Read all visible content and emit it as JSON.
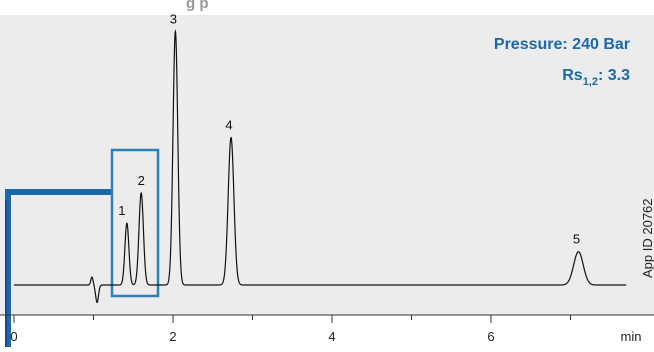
{
  "header_fragment": "g   p",
  "annotations": {
    "pressure_text": "Pressure: 240 Bar",
    "rs_prefix": "Rs",
    "rs_subscript": "1,2",
    "rs_suffix": ": 3.3",
    "app_id": "App ID 20762"
  },
  "colors": {
    "plot_background": "#ececec",
    "annotation_blue": "#1a6aa8",
    "box_blue": "#2d7fb5",
    "trace": "#111111",
    "axis": "#333333"
  },
  "chart_data": {
    "type": "line",
    "title": "",
    "xlabel": "",
    "ylabel": "",
    "x_unit": "min",
    "xlim": [
      0,
      7.7
    ],
    "xticks": [
      0,
      2,
      4,
      6
    ],
    "x_unit_label": "min",
    "grid": false,
    "legend": "none",
    "series": [
      {
        "baseline": 0,
        "disturbance": {
          "t": 1.0,
          "down": -1.1,
          "up": 0.5
        },
        "peaks": [
          {
            "label": "1",
            "t": 1.42,
            "height": 3.9,
            "width": 0.025
          },
          {
            "label": "2",
            "t": 1.6,
            "height": 5.8,
            "width": 0.028
          },
          {
            "label": "3",
            "t": 2.03,
            "height": 16.0,
            "width": 0.03
          },
          {
            "label": "4",
            "t": 2.73,
            "height": 9.3,
            "width": 0.036
          },
          {
            "label": "5",
            "t": 7.1,
            "height": 2.1,
            "width": 0.06
          }
        ]
      }
    ],
    "ylim": [
      -3,
      17.7
    ]
  }
}
